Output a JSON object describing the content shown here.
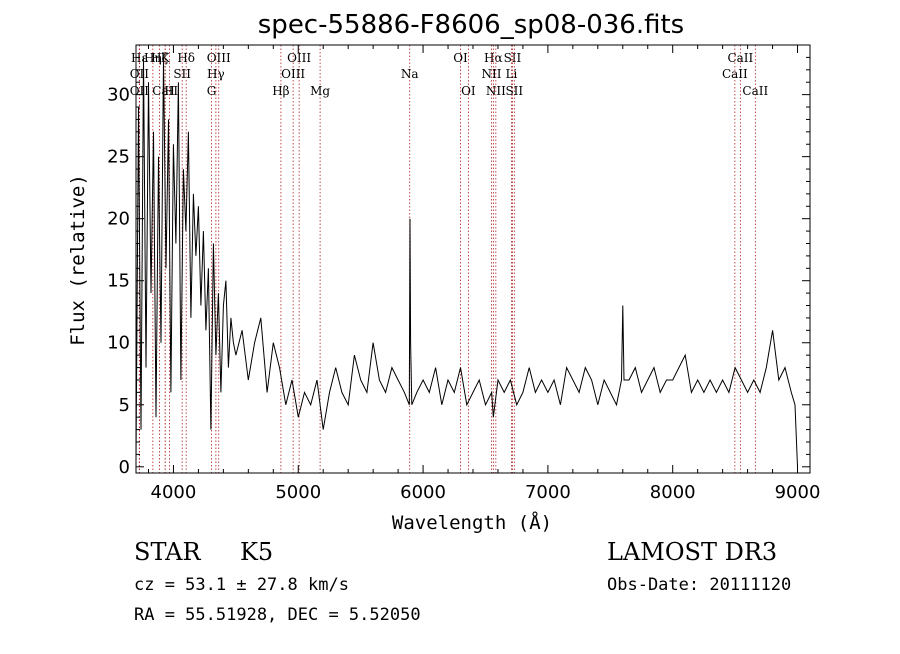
{
  "chart_data": {
    "type": "line",
    "title": "spec-55886-F8606_sp08-036.fits",
    "xlabel": "Wavelength (Å)",
    "ylabel": "Flux (relative)",
    "xlim": [
      3700,
      9100
    ],
    "ylim": [
      -0.5,
      34
    ],
    "xticks": [
      4000,
      5000,
      6000,
      7000,
      8000,
      9000
    ],
    "yticks": [
      0,
      5,
      10,
      15,
      20,
      25,
      30
    ],
    "series": [
      {
        "name": "flux",
        "x": [
          3700,
          3720,
          3740,
          3760,
          3780,
          3800,
          3820,
          3840,
          3860,
          3880,
          3900,
          3920,
          3940,
          3960,
          3980,
          4000,
          4020,
          4040,
          4060,
          4080,
          4100,
          4120,
          4140,
          4160,
          4180,
          4200,
          4220,
          4240,
          4260,
          4280,
          4300,
          4320,
          4340,
          4360,
          4380,
          4400,
          4420,
          4440,
          4460,
          4480,
          4500,
          4550,
          4600,
          4650,
          4700,
          4750,
          4800,
          4850,
          4900,
          4950,
          5000,
          5050,
          5100,
          5150,
          5200,
          5250,
          5300,
          5350,
          5400,
          5450,
          5500,
          5550,
          5600,
          5650,
          5700,
          5750,
          5800,
          5850,
          5890,
          5895,
          5900,
          5910,
          5950,
          6000,
          6050,
          6100,
          6150,
          6200,
          6250,
          6300,
          6350,
          6400,
          6450,
          6500,
          6550,
          6563,
          6600,
          6650,
          6700,
          6750,
          6800,
          6850,
          6900,
          6950,
          7000,
          7050,
          7100,
          7150,
          7200,
          7250,
          7300,
          7350,
          7400,
          7450,
          7500,
          7550,
          7590,
          7600,
          7610,
          7650,
          7700,
          7750,
          7800,
          7850,
          7900,
          7950,
          8000,
          8050,
          8100,
          8150,
          8200,
          8250,
          8300,
          8350,
          8400,
          8450,
          8500,
          8550,
          8600,
          8650,
          8700,
          8750,
          8800,
          8850,
          8900,
          8950,
          8980,
          9000
        ],
        "y": [
          0.5,
          29,
          3,
          33,
          8,
          31,
          14,
          27,
          4,
          25,
          10,
          33,
          16,
          28,
          6,
          26,
          18,
          31,
          7,
          24,
          19,
          27,
          12,
          22,
          17,
          21,
          13,
          19,
          11,
          16,
          3,
          18,
          9,
          14,
          6,
          13,
          15,
          8,
          12,
          10,
          9,
          11,
          7,
          10,
          12,
          6,
          10,
          8,
          5,
          7,
          4,
          6,
          5,
          7,
          3,
          6,
          8,
          6,
          5,
          9,
          7,
          6,
          10,
          7,
          6,
          8,
          7,
          6,
          5,
          20,
          10,
          5,
          6,
          7,
          6,
          8,
          5,
          7,
          6,
          8,
          5,
          6,
          7,
          5,
          6,
          4,
          7,
          6,
          7,
          5,
          6,
          8,
          6,
          7,
          6,
          7,
          5,
          8,
          7,
          6,
          8,
          7,
          5,
          7,
          6,
          5,
          7,
          13,
          7,
          7,
          8,
          6,
          7,
          8,
          6,
          7,
          7,
          8,
          9,
          6,
          7,
          6,
          7,
          6,
          7,
          6,
          8,
          7,
          6,
          7,
          6,
          8,
          11,
          7,
          8,
          6,
          5,
          0
        ]
      }
    ],
    "spectral_lines": [
      {
        "label": "Hε",
        "x": 3727,
        "row": 1
      },
      {
        "label": "OII",
        "x": 3727,
        "row": 2
      },
      {
        "label": "OII",
        "x": 3727,
        "row": 3
      },
      {
        "label": "Hη",
        "x": 3835,
        "row": 1
      },
      {
        "label": "Hζ",
        "x": 3889,
        "row": 1
      },
      {
        "label": "CaII",
        "x": 3934,
        "row": 3
      },
      {
        "label": "K",
        "x": 3934,
        "row": 1
      },
      {
        "label": "H",
        "x": 3969,
        "row": 3
      },
      {
        "label": "SII",
        "x": 4070,
        "row": 2
      },
      {
        "label": "Hδ",
        "x": 4102,
        "row": 1
      },
      {
        "label": "OIII",
        "x": 4363,
        "row": 1
      },
      {
        "label": "Hγ",
        "x": 4340,
        "row": 2
      },
      {
        "label": "G",
        "x": 4305,
        "row": 3
      },
      {
        "label": "Hβ",
        "x": 4861,
        "row": 3
      },
      {
        "label": "OIII",
        "x": 5007,
        "row": 1
      },
      {
        "label": "OIII",
        "x": 4959,
        "row": 2
      },
      {
        "label": "Mg",
        "x": 5175,
        "row": 3
      },
      {
        "label": "Na",
        "x": 5893,
        "row": 2
      },
      {
        "label": "OI",
        "x": 6300,
        "row": 1
      },
      {
        "label": "OI",
        "x": 6363,
        "row": 3
      },
      {
        "label": "Hα",
        "x": 6563,
        "row": 1
      },
      {
        "label": "NII",
        "x": 6548,
        "row": 2
      },
      {
        "label": "NII",
        "x": 6583,
        "row": 3
      },
      {
        "label": "SII",
        "x": 6716,
        "row": 1
      },
      {
        "label": "Li",
        "x": 6708,
        "row": 2
      },
      {
        "label": "SII",
        "x": 6731,
        "row": 3
      },
      {
        "label": "CaII",
        "x": 8542,
        "row": 1
      },
      {
        "label": "CaII",
        "x": 8498,
        "row": 2
      },
      {
        "label": "CaII",
        "x": 8662,
        "row": 3
      }
    ]
  },
  "info": {
    "class_label": "STAR",
    "subclass": "K5",
    "survey": "LAMOST DR3",
    "cz": "cz = 53.1 ± 27.8 km/s",
    "obs_date": "Obs-Date: 20111120",
    "coords": "RA =  55.51928, DEC =   5.52050"
  }
}
